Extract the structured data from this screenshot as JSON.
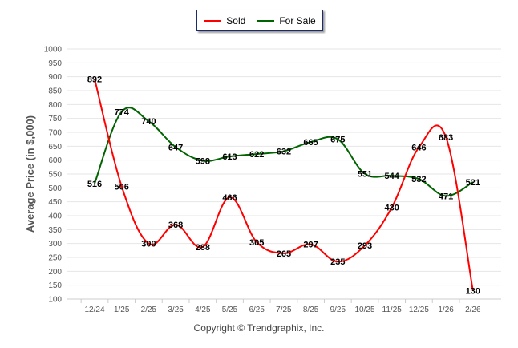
{
  "chart_data": {
    "type": "line",
    "title": "",
    "xlabel": "",
    "ylabel": "Average Price (in $,000)",
    "ylim": [
      100,
      1000
    ],
    "ytick_step": 50,
    "grid": true,
    "legend_position": "top-center",
    "categories": [
      "12/24",
      "1/25",
      "2/25",
      "3/25",
      "4/25",
      "5/25",
      "6/25",
      "7/25",
      "8/25",
      "9/25",
      "10/25",
      "11/25",
      "12/25",
      "1/26",
      "2/26"
    ],
    "series": [
      {
        "name": "Sold",
        "color": "#ff0000",
        "values": [
          892,
          506,
          300,
          368,
          288,
          466,
          305,
          265,
          297,
          235,
          293,
          430,
          646,
          683,
          130
        ]
      },
      {
        "name": "For Sale",
        "color": "#006400",
        "values": [
          516,
          774,
          740,
          647,
          598,
          613,
          622,
          632,
          665,
          675,
          551,
          544,
          532,
          471,
          521
        ]
      }
    ]
  },
  "footer": {
    "copyright": "Copyright © Trendgraphix, Inc."
  }
}
